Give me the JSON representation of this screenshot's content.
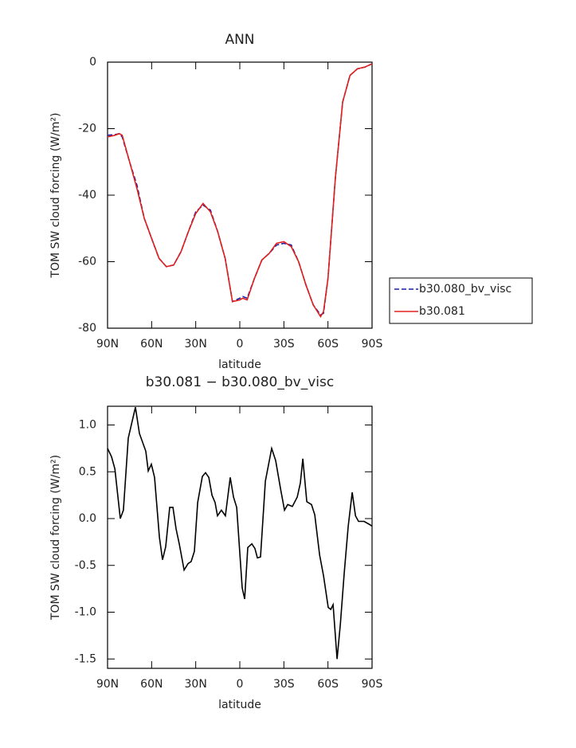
{
  "chart_data": [
    {
      "type": "line",
      "title": "ANN",
      "x_label": "latitude",
      "y_label": "TOM SW cloud forcing (W/m²)",
      "x": [
        90,
        85,
        82,
        80,
        75,
        70,
        65,
        60,
        55,
        50,
        45,
        40,
        35,
        30,
        25,
        20,
        15,
        10,
        5,
        0,
        -2,
        -5,
        -10,
        -15,
        -20,
        -25,
        -30,
        -35,
        -40,
        -45,
        -50,
        -55,
        -57,
        -60,
        -65,
        -70,
        -75,
        -80,
        -85,
        -90
      ],
      "series": [
        {
          "name": "b30.080_bv_visc",
          "color": "#1c1ca8",
          "dashed": true,
          "values": [
            -22,
            -21.8,
            -21.5,
            -22.5,
            -30,
            -37,
            -47,
            -53,
            -59,
            -61.5,
            -61,
            -57,
            -51,
            -45,
            -43,
            -44.5,
            -51,
            -59,
            -72,
            -71,
            -70.5,
            -71,
            -65,
            -59.5,
            -57.5,
            -55,
            -54.5,
            -55,
            -60,
            -67,
            -73,
            -76,
            -75.5,
            -65,
            -35,
            -12,
            -4,
            -2,
            -1.5,
            -0.5
          ]
        },
        {
          "name": "b30.081",
          "color": "#e0201c",
          "dashed": false,
          "values": [
            -22.5,
            -22,
            -21.5,
            -22,
            -30,
            -38,
            -47,
            -53,
            -59,
            -61.5,
            -61,
            -57,
            -51,
            -45.5,
            -42.5,
            -45,
            -51,
            -59,
            -72,
            -71.5,
            -71,
            -71.5,
            -65,
            -59.5,
            -57.5,
            -54.5,
            -54,
            -55.5,
            -60,
            -67,
            -73,
            -76.5,
            -75,
            -65,
            -35,
            -12,
            -4,
            -2,
            -1.5,
            -0.5
          ]
        }
      ],
      "xlim": [
        90,
        -90
      ],
      "xticks": [
        {
          "value": 90,
          "label": "90N"
        },
        {
          "value": 60,
          "label": "60N"
        },
        {
          "value": 30,
          "label": "30N"
        },
        0,
        {
          "value": -30,
          "label": "30S"
        },
        {
          "value": -60,
          "label": "60S"
        },
        {
          "value": -90,
          "label": "90S"
        }
      ],
      "ylim": [
        -80,
        0
      ],
      "yticks": [
        0,
        -20,
        -40,
        -60,
        -80
      ],
      "legend": "right"
    },
    {
      "type": "line",
      "title": "b30.081 − b30.080_bv_visc",
      "x_label": "latitude",
      "y_label": "TOM SW cloud forcing (W/m²)",
      "x": [
        90,
        87.3,
        85,
        81.3,
        79.2,
        75.9,
        71,
        68.3,
        64,
        62.3,
        60.2,
        58,
        54.7,
        52.6,
        50.4,
        47.7,
        45.5,
        43.4,
        41.2,
        37.9,
        35.2,
        33.1,
        30.9,
        28.7,
        25.5,
        23.3,
        21.1,
        18.9,
        16.8,
        15.2,
        12.5,
        9.8,
        6.5,
        4.3,
        2.1,
        -1.6,
        -3.3,
        -5.4,
        -8.2,
        -10.3,
        -12,
        -14.1,
        -17.4,
        -21.7,
        -24.4,
        -27.7,
        -30.4,
        -32.6,
        -35.8,
        -39.1,
        -41.2,
        -42.9,
        -45.6,
        -48.8,
        -51,
        -54.3,
        -57,
        -60.2,
        -61.9,
        -63.5,
        -66.2,
        -68.4,
        -71.1,
        -73.8,
        -76.5,
        -78.7,
        -80.8,
        -84.6,
        -87.9,
        -90
      ],
      "series": [
        {
          "color": "#000000",
          "dashed": false,
          "values": [
            0.75,
            0.66,
            0.53,
            0,
            0.09,
            0.86,
            1.19,
            0.91,
            0.72,
            0.51,
            0.58,
            0.44,
            -0.2,
            -0.44,
            -0.3,
            0.12,
            0.12,
            -0.11,
            -0.27,
            -0.55,
            -0.48,
            -0.46,
            -0.35,
            0.17,
            0.45,
            0.49,
            0.44,
            0.25,
            0.17,
            0.03,
            0.09,
            0.03,
            0.44,
            0.23,
            0.12,
            -0.74,
            -0.86,
            -0.31,
            -0.27,
            -0.32,
            -0.42,
            -0.41,
            0.4,
            0.75,
            0.62,
            0.32,
            0.09,
            0.15,
            0.13,
            0.23,
            0.38,
            0.64,
            0.18,
            0.15,
            0.04,
            -0.39,
            -0.61,
            -0.95,
            -0.97,
            -0.92,
            -1.5,
            -1.13,
            -0.58,
            -0.08,
            0.28,
            0.03,
            -0.03,
            -0.03,
            -0.06,
            -0.08
          ]
        }
      ],
      "xlim": [
        90,
        -90
      ],
      "xticks": [
        {
          "value": 90,
          "label": "90N"
        },
        {
          "value": 60,
          "label": "60N"
        },
        {
          "value": 30,
          "label": "30N"
        },
        0,
        {
          "value": -30,
          "label": "30S"
        },
        {
          "value": -60,
          "label": "60S"
        },
        {
          "value": -90,
          "label": "90S"
        }
      ],
      "ylim": [
        -1.6,
        1.2
      ],
      "yticks": [
        {
          "value": 1,
          "label": "1.0"
        },
        0.5,
        {
          "value": 0,
          "label": "0.0"
        },
        -0.5,
        {
          "value": -1,
          "label": "-1.0"
        },
        -1.5
      ]
    }
  ]
}
